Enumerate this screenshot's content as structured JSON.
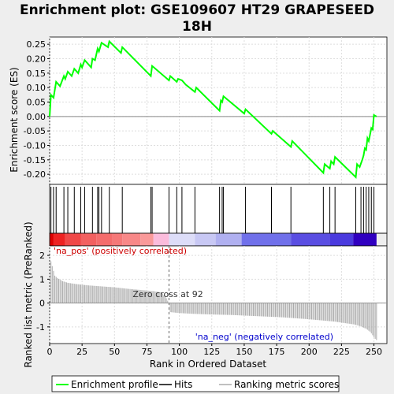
{
  "chart_data": {
    "type": "line",
    "title_lines": [
      "Enrichment plot: GSE109607 HT29 GRAPESEED",
      "18H"
    ],
    "total_ranks": 252,
    "xlim": [
      0,
      260
    ],
    "x_ticks": [
      0,
      25,
      50,
      75,
      100,
      125,
      150,
      175,
      200,
      225,
      250
    ],
    "x_tick_labels": [
      "0",
      "25",
      "50",
      "75",
      "100",
      "125",
      "150",
      "175",
      "200",
      "225",
      "250"
    ],
    "xlabel": "Rank in Ordered Dataset",
    "es_panel": {
      "ylabel": "Enrichment score (ES)",
      "ylim": [
        -0.235,
        0.275
      ],
      "y_ticks": [
        -0.2,
        -0.15,
        -0.1,
        -0.05,
        0.0,
        0.05,
        0.1,
        0.15,
        0.2,
        0.25
      ],
      "y_tick_labels": [
        "-0.20",
        "-0.15",
        "-0.10",
        "-0.05",
        "0.00",
        "0.05",
        "0.10",
        "0.15",
        "0.20",
        "0.25"
      ],
      "series_name": "Enrichment profile",
      "color": "#00ff00",
      "points": [
        [
          0,
          0.0
        ],
        [
          1,
          0.075
        ],
        [
          3,
          0.065
        ],
        [
          5,
          0.12
        ],
        [
          8,
          0.105
        ],
        [
          11,
          0.14
        ],
        [
          12,
          0.13
        ],
        [
          14,
          0.155
        ],
        [
          17,
          0.14
        ],
        [
          19,
          0.165
        ],
        [
          22,
          0.15
        ],
        [
          24,
          0.18
        ],
        [
          25,
          0.17
        ],
        [
          27,
          0.195
        ],
        [
          32,
          0.17
        ],
        [
          33,
          0.2
        ],
        [
          35,
          0.195
        ],
        [
          37,
          0.235
        ],
        [
          38,
          0.225
        ],
        [
          40,
          0.255
        ],
        [
          45,
          0.24
        ],
        [
          46,
          0.26
        ],
        [
          55,
          0.22
        ],
        [
          56,
          0.24
        ],
        [
          78,
          0.14
        ],
        [
          79,
          0.175
        ],
        [
          92,
          0.125
        ],
        [
          93,
          0.14
        ],
        [
          98,
          0.12
        ],
        [
          99,
          0.13
        ],
        [
          102,
          0.125
        ],
        [
          105,
          0.11
        ],
        [
          112,
          0.085
        ],
        [
          113,
          0.1
        ],
        [
          131,
          0.02
        ],
        [
          132,
          0.055
        ],
        [
          133,
          0.05
        ],
        [
          134,
          0.07
        ],
        [
          150,
          0.01
        ],
        [
          151,
          0.025
        ],
        [
          171,
          -0.06
        ],
        [
          172,
          -0.05
        ],
        [
          186,
          -0.105
        ],
        [
          187,
          -0.085
        ],
        [
          211,
          -0.195
        ],
        [
          212,
          -0.165
        ],
        [
          216,
          -0.18
        ],
        [
          217,
          -0.155
        ],
        [
          219,
          -0.165
        ],
        [
          220,
          -0.14
        ],
        [
          236,
          -0.21
        ],
        [
          237,
          -0.165
        ],
        [
          239,
          -0.175
        ],
        [
          241,
          -0.15
        ],
        [
          242,
          -0.135
        ],
        [
          243,
          -0.11
        ],
        [
          244,
          -0.115
        ],
        [
          245,
          -0.075
        ],
        [
          246,
          -0.085
        ],
        [
          248,
          -0.04
        ],
        [
          249,
          -0.045
        ],
        [
          250,
          0.005
        ],
        [
          252,
          0.0
        ]
      ]
    },
    "hits": [
      1,
      3,
      5,
      11,
      14,
      19,
      24,
      27,
      33,
      37,
      38,
      40,
      46,
      56,
      78,
      79,
      92,
      98,
      102,
      112,
      131,
      133,
      134,
      151,
      171,
      186,
      211,
      216,
      220,
      236,
      240,
      242,
      244,
      246,
      248,
      250
    ],
    "hits_label": "Hits",
    "heatmap": {
      "segments": [
        {
          "to": 3,
          "color": "#dd0000"
        },
        {
          "to": 12,
          "color": "#ee2222"
        },
        {
          "to": 24,
          "color": "#f04848"
        },
        {
          "to": 36,
          "color": "#f26060"
        },
        {
          "to": 48,
          "color": "#f46c6c"
        },
        {
          "to": 56,
          "color": "#f57878"
        },
        {
          "to": 70,
          "color": "#f88888"
        },
        {
          "to": 80,
          "color": "#fa9a9a"
        },
        {
          "to": 92,
          "color": "#fbbcdc"
        },
        {
          "to": 112,
          "color": "#ddddf8"
        },
        {
          "to": 128,
          "color": "#c8c8f4"
        },
        {
          "to": 148,
          "color": "#b0b0f0"
        },
        {
          "to": 186,
          "color": "#7070ea"
        },
        {
          "to": 216,
          "color": "#5a4ee2"
        },
        {
          "to": 234,
          "color": "#4a3ade"
        },
        {
          "to": 252,
          "color": "#3000c0"
        }
      ]
    },
    "metric_panel": {
      "ylabel": "Ranked list metric (PreRanked)",
      "ylim": [
        -1.7,
        2.4
      ],
      "y_ticks": [
        -1,
        0,
        1,
        2
      ],
      "y_tick_labels": [
        "-1",
        "0",
        "1",
        "2"
      ],
      "series_name": "Ranking metric scores",
      "color": "#aaaaaa",
      "points": [
        [
          0,
          2.0
        ],
        [
          1,
          1.75
        ],
        [
          2,
          1.55
        ],
        [
          3,
          1.35
        ],
        [
          4,
          1.15
        ],
        [
          6,
          1.05
        ],
        [
          8,
          0.98
        ],
        [
          10,
          0.92
        ],
        [
          14,
          0.85
        ],
        [
          20,
          0.8
        ],
        [
          30,
          0.74
        ],
        [
          40,
          0.7
        ],
        [
          50,
          0.66
        ],
        [
          60,
          0.6
        ],
        [
          70,
          0.55
        ],
        [
          80,
          0.5
        ],
        [
          86,
          0.45
        ],
        [
          90,
          0.2
        ],
        [
          92,
          0.0
        ],
        [
          93,
          -0.38
        ],
        [
          100,
          -0.42
        ],
        [
          110,
          -0.45
        ],
        [
          125,
          -0.48
        ],
        [
          140,
          -0.5
        ],
        [
          160,
          -0.55
        ],
        [
          180,
          -0.6
        ],
        [
          200,
          -0.68
        ],
        [
          220,
          -0.78
        ],
        [
          235,
          -0.9
        ],
        [
          240,
          -0.98
        ],
        [
          244,
          -1.08
        ],
        [
          247,
          -1.2
        ],
        [
          249,
          -1.35
        ],
        [
          251,
          -1.5
        ],
        [
          252,
          -1.55
        ]
      ]
    },
    "zero_cross": 92,
    "annotations": {
      "pos_label": "'na_pos' (positively correlated)",
      "neg_label": "'na_neg' (negatively correlated)",
      "zero_cross_label": "Zero cross at 92",
      "pos_color": "#cc0000",
      "neg_color": "#0000cc"
    },
    "legend": {
      "placement": "bottom",
      "items": [
        {
          "label": "Enrichment profile",
          "color": "#00ff00"
        },
        {
          "label": "Hits",
          "color": "#000000"
        },
        {
          "label": "Ranking metric scores",
          "color": "#aaaaaa"
        }
      ]
    }
  }
}
